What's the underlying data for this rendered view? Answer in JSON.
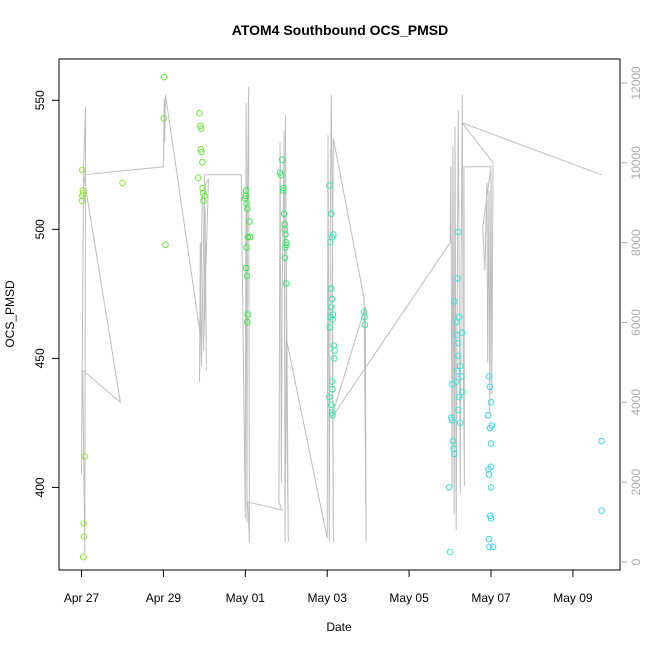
{
  "chart_data": {
    "type": "scatter",
    "title": "ATOM4 Southbound OCS_PMSD",
    "xlabel": "Date",
    "ylabel": "OCS_PMSD",
    "x_ticks": [
      "Apr 27",
      "Apr 29",
      "May 01",
      "May 03",
      "May 05",
      "May 07",
      "May 09"
    ],
    "x_tick_days": [
      0,
      2,
      4,
      6,
      8,
      10,
      12
    ],
    "xlim_days": [
      -0.55,
      13.15
    ],
    "ylim": [
      368,
      566
    ],
    "y_ticks": [
      400,
      450,
      500,
      550
    ],
    "y2_ticks": [
      0,
      2000,
      4000,
      6000,
      8000,
      10000,
      12000
    ],
    "y2lim": [
      -200,
      12600
    ],
    "colors": {
      "axis": "#000000",
      "secondary_axis": "#aaaaaa",
      "line": "#bebebe"
    },
    "series": [
      {
        "color": "#8fe63a",
        "points": [
          [
            0.02,
            523
          ],
          [
            0.03,
            515
          ],
          [
            0.04,
            514
          ],
          [
            0.02,
            513
          ],
          [
            0.01,
            511
          ],
          [
            0.08,
            412
          ],
          [
            0.05,
            386
          ],
          [
            0.06,
            381
          ],
          [
            0.04,
            373
          ],
          [
            1.0,
            518
          ]
        ]
      },
      {
        "color": "#6de63a",
        "points": [
          [
            2.02,
            559
          ],
          [
            2.01,
            543
          ],
          [
            2.05,
            494
          ],
          [
            2.85,
            520
          ],
          [
            2.88,
            545
          ],
          [
            2.9,
            540
          ],
          [
            2.92,
            539
          ],
          [
            2.91,
            531
          ],
          [
            2.93,
            530
          ],
          [
            2.95,
            526
          ],
          [
            2.96,
            516
          ],
          [
            2.97,
            514
          ],
          [
            3.0,
            513
          ],
          [
            2.98,
            511
          ]
        ]
      },
      {
        "color": "#3ae647",
        "points": [
          [
            4.02,
            515
          ],
          [
            4.01,
            513
          ],
          [
            4.0,
            512
          ],
          [
            4.03,
            510
          ],
          [
            4.05,
            508
          ],
          [
            4.06,
            497
          ],
          [
            4.03,
            493
          ],
          [
            4.02,
            485
          ],
          [
            4.04,
            482
          ],
          [
            4.06,
            467
          ],
          [
            4.05,
            464
          ],
          [
            4.1,
            503
          ],
          [
            4.12,
            497
          ]
        ]
      },
      {
        "color": "#3ae670",
        "points": [
          [
            4.85,
            522
          ],
          [
            4.87,
            521
          ],
          [
            4.9,
            527
          ],
          [
            4.93,
            516
          ],
          [
            4.92,
            515
          ],
          [
            4.95,
            506
          ],
          [
            4.96,
            502
          ],
          [
            4.97,
            500
          ],
          [
            4.98,
            498
          ],
          [
            4.99,
            495
          ],
          [
            5.0,
            494
          ],
          [
            4.98,
            493
          ],
          [
            4.97,
            489
          ],
          [
            5.0,
            479
          ]
        ]
      },
      {
        "color": "#3ae6b1",
        "points": [
          [
            6.05,
            517
          ],
          [
            6.1,
            506
          ],
          [
            6.15,
            498
          ],
          [
            6.12,
            497
          ],
          [
            6.08,
            495
          ],
          [
            6.1,
            477
          ],
          [
            6.12,
            473
          ],
          [
            6.14,
            467
          ],
          [
            6.1,
            470
          ],
          [
            6.06,
            462
          ],
          [
            6.08,
            466
          ],
          [
            6.13,
            465
          ],
          [
            6.16,
            455
          ],
          [
            6.18,
            453
          ],
          [
            6.17,
            450
          ],
          [
            6.12,
            441
          ],
          [
            6.13,
            438
          ],
          [
            6.05,
            435
          ],
          [
            6.1,
            432
          ],
          [
            6.12,
            429
          ],
          [
            6.13,
            428
          ],
          [
            6.9,
            468
          ],
          [
            6.91,
            466
          ],
          [
            6.92,
            463
          ]
        ]
      },
      {
        "color": "#3ae6d7",
        "points": [
          [
            8.98,
            400
          ],
          [
            9.0,
            375
          ],
          [
            9.03,
            427
          ],
          [
            9.05,
            426
          ],
          [
            9.07,
            418
          ],
          [
            9.09,
            415
          ],
          [
            9.1,
            413
          ],
          [
            9.05,
            440
          ],
          [
            9.15,
            441
          ],
          [
            9.17,
            445
          ],
          [
            9.2,
            451
          ],
          [
            9.15,
            464
          ],
          [
            9.16,
            459
          ],
          [
            9.1,
            472
          ],
          [
            9.22,
            466
          ],
          [
            9.2,
            456
          ],
          [
            9.25,
            447
          ],
          [
            9.3,
            437
          ],
          [
            9.28,
            443
          ],
          [
            9.22,
            435
          ],
          [
            9.2,
            430
          ],
          [
            9.25,
            425
          ],
          [
            9.18,
            481
          ],
          [
            9.2,
            499
          ],
          [
            9.3,
            460
          ]
        ]
      },
      {
        "color": "#3ad7e6",
        "points": [
          [
            9.93,
            428
          ],
          [
            9.95,
            443
          ],
          [
            9.97,
            439
          ],
          [
            10.0,
            433
          ],
          [
            9.98,
            423
          ],
          [
            10.02,
            424
          ],
          [
            10.0,
            417
          ],
          [
            9.94,
            407
          ],
          [
            9.95,
            405
          ],
          [
            10.0,
            408
          ],
          [
            10.0,
            400
          ],
          [
            9.98,
            389
          ],
          [
            10.0,
            388
          ],
          [
            9.95,
            380
          ],
          [
            9.96,
            377
          ],
          [
            10.05,
            377
          ],
          [
            12.7,
            418
          ],
          [
            12.7,
            391
          ]
        ]
      }
    ],
    "line_data": [
      [
        0.0,
        2200
      ],
      [
        0.05,
        9900
      ],
      [
        0.1,
        11400
      ],
      [
        0.08,
        200
      ],
      [
        0.03,
        4800
      ],
      [
        0.95,
        4000
      ],
      [
        0.05,
        9700
      ],
      [
        1.0,
        9800
      ],
      [
        2.0,
        9900
      ],
      [
        2.02,
        11600
      ],
      [
        2.03,
        10500
      ],
      [
        2.05,
        11700
      ],
      [
        2.9,
        5700
      ],
      [
        2.95,
        9200
      ],
      [
        2.88,
        4500
      ],
      [
        2.9,
        8000
      ],
      [
        2.93,
        4900
      ],
      [
        3.0,
        9400
      ],
      [
        3.1,
        9600
      ],
      [
        2.98,
        5300
      ],
      [
        3.02,
        8800
      ],
      [
        3.05,
        4800
      ],
      [
        3.0,
        9700
      ],
      [
        3.9,
        9700
      ],
      [
        4.0,
        1100
      ],
      [
        4.02,
        11500
      ],
      [
        4.04,
        1000
      ],
      [
        4.05,
        9000
      ],
      [
        4.08,
        11900
      ],
      [
        4.1,
        500
      ],
      [
        4.06,
        1500
      ],
      [
        4.9,
        1300
      ],
      [
        4.82,
        1500
      ],
      [
        4.85,
        10500
      ],
      [
        4.88,
        2000
      ],
      [
        4.9,
        7000
      ],
      [
        4.92,
        8000
      ],
      [
        4.95,
        10800
      ],
      [
        4.97,
        500
      ],
      [
        5.0,
        6000
      ],
      [
        5.02,
        3000
      ],
      [
        5.05,
        500
      ],
      [
        4.98,
        11200
      ],
      [
        5.0,
        5600
      ],
      [
        6.0,
        600
      ],
      [
        6.02,
        10700
      ],
      [
        6.05,
        500
      ],
      [
        6.08,
        9500
      ],
      [
        6.1,
        11700
      ],
      [
        6.13,
        8000
      ],
      [
        6.15,
        500
      ],
      [
        6.12,
        7000
      ],
      [
        6.15,
        10600
      ],
      [
        6.9,
        6600
      ],
      [
        6.95,
        500
      ],
      [
        6.93,
        6400
      ],
      [
        6.1,
        3600
      ],
      [
        9.0,
        8000
      ],
      [
        9.02,
        9900
      ],
      [
        9.05,
        1900
      ],
      [
        9.07,
        10400
      ],
      [
        9.1,
        1200
      ],
      [
        9.12,
        10900
      ],
      [
        9.15,
        800
      ],
      [
        9.18,
        7800
      ],
      [
        9.2,
        11300
      ],
      [
        9.25,
        1700
      ],
      [
        9.27,
        7200
      ],
      [
        9.3,
        11700
      ],
      [
        9.32,
        5200
      ],
      [
        9.35,
        1900
      ],
      [
        9.34,
        9900
      ],
      [
        10.0,
        9900
      ],
      [
        9.8,
        8400
      ],
      [
        9.85,
        7300
      ],
      [
        9.9,
        9500
      ],
      [
        9.92,
        5000
      ],
      [
        9.95,
        9300
      ],
      [
        9.97,
        3700
      ],
      [
        10.0,
        9800
      ],
      [
        10.02,
        4200
      ],
      [
        10.05,
        10000
      ],
      [
        9.3,
        11000
      ],
      [
        12.7,
        9700
      ]
    ]
  }
}
